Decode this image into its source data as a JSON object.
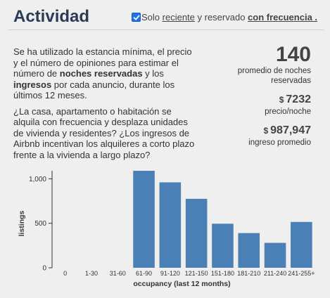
{
  "header": {
    "title": "Actividad",
    "filter": {
      "checked": true,
      "prefix": "Solo ",
      "link1": "reciente",
      "middle": " y reservado ",
      "link2": "con frecuencia .",
      "accent": "#1a73e8"
    }
  },
  "description": {
    "p1_a": "Se ha utilizado la estancia mínima, el precio y el número de opiniones para estimar el número de ",
    "p1_b": "noches reservadas",
    "p1_c": " y los ",
    "p1_d": "ingresos",
    "p1_e": " por cada anuncio, durante los últimos 12 meses.",
    "p2": "¿La casa, apartamento o habitación se alquila con frecuencia y desplaza unidades de vivienda y residentes? ¿Los ingresos de Airbnb incentivan los alquileres a corto plazo frente a la vivienda a largo plazo?"
  },
  "stats": {
    "nights_value": "140",
    "nights_label_1": "promedio de noches",
    "nights_label_2": "reservadas",
    "price_currency": "$",
    "price_value": "7232",
    "price_label": "precio/noche",
    "income_currency": "$",
    "income_value": "987,947",
    "income_label": "ingreso promedio"
  },
  "chart_data": {
    "type": "bar",
    "categories": [
      "0",
      "1-30",
      "31-60",
      "61-90",
      "91-120",
      "121-150",
      "151-180",
      "181-210",
      "211-240",
      "241-255+"
    ],
    "values": [
      0,
      0,
      0,
      1090,
      960,
      775,
      495,
      390,
      280,
      515
    ],
    "xlabel": "occupancy (last 12 months)",
    "ylabel": "listings",
    "ylim": [
      0,
      1090
    ],
    "yticks": [
      0,
      500,
      1000
    ],
    "ytick_labels": [
      "0",
      "500",
      "1,000"
    ],
    "bar_color": "#4a80b5",
    "grid": false
  }
}
